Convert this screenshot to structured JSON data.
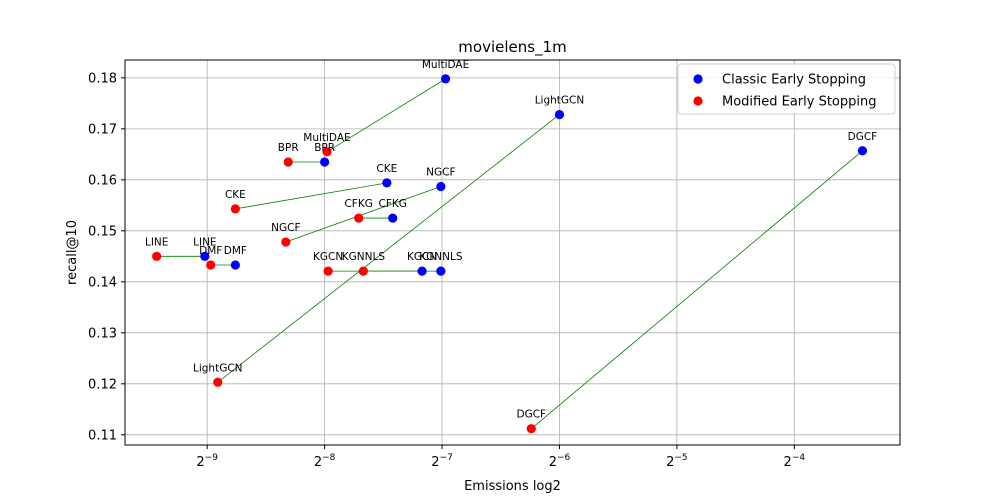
{
  "chart_data": {
    "type": "scatter",
    "title": "movielens_1m",
    "xlabel": "Emissions log2",
    "ylabel": "recall@10",
    "x_scale": "log2",
    "x_ticks": [
      {
        "exp": -9,
        "label": "2^-9"
      },
      {
        "exp": -8,
        "label": "2^-8"
      },
      {
        "exp": -7,
        "label": "2^-7"
      },
      {
        "exp": -6,
        "label": "2^-6"
      },
      {
        "exp": -5,
        "label": "2^-5"
      },
      {
        "exp": -4,
        "label": "2^-4"
      }
    ],
    "xlim_log2": [
      -9.7,
      -3.1
    ],
    "ylim": [
      0.108,
      0.1835
    ],
    "y_ticks": [
      0.11,
      0.12,
      0.13,
      0.14,
      0.15,
      0.16,
      0.17,
      0.18
    ],
    "grid": true,
    "legend_position": "top-right",
    "series": [
      {
        "name": "Classic Early Stopping",
        "color": "#0000ff",
        "points": [
          {
            "label": "MultiDAE",
            "x_log2": -6.97,
            "y": 0.1798
          },
          {
            "label": "LightGCN",
            "x_log2": -6.0,
            "y": 0.1728
          },
          {
            "label": "DGCF",
            "x_log2": -3.42,
            "y": 0.1657
          },
          {
            "label": "BPR",
            "x_log2": -8.0,
            "y": 0.1635
          },
          {
            "label": "CKE",
            "x_log2": -7.47,
            "y": 0.1594
          },
          {
            "label": "NGCF",
            "x_log2": -7.01,
            "y": 0.1587
          },
          {
            "label": "CFKG",
            "x_log2": -7.42,
            "y": 0.1525
          },
          {
            "label": "LINE",
            "x_log2": -9.02,
            "y": 0.145
          },
          {
            "label": "DMF",
            "x_log2": -8.76,
            "y": 0.1433
          },
          {
            "label": "KGCN",
            "x_log2": -7.17,
            "y": 0.1421
          },
          {
            "label": "KGNNLS",
            "x_log2": -7.01,
            "y": 0.1421
          }
        ]
      },
      {
        "name": "Modified Early Stopping",
        "color": "#ff0000",
        "points": [
          {
            "label": "MultiDAE",
            "x_log2": -7.98,
            "y": 0.1655
          },
          {
            "label": "BPR",
            "x_log2": -8.31,
            "y": 0.1635
          },
          {
            "label": "CKE",
            "x_log2": -8.76,
            "y": 0.1543
          },
          {
            "label": "CFKG",
            "x_log2": -7.71,
            "y": 0.1525
          },
          {
            "label": "NGCF",
            "x_log2": -8.33,
            "y": 0.1478
          },
          {
            "label": "LINE",
            "x_log2": -9.43,
            "y": 0.145
          },
          {
            "label": "DMF",
            "x_log2": -8.97,
            "y": 0.1433
          },
          {
            "label": "KGCN",
            "x_log2": -7.97,
            "y": 0.1421
          },
          {
            "label": "KGNNLS",
            "x_log2": -7.67,
            "y": 0.1421
          },
          {
            "label": "LightGCN",
            "x_log2": -8.91,
            "y": 0.1203
          },
          {
            "label": "DGCF",
            "x_log2": -6.24,
            "y": 0.1112
          }
        ]
      }
    ],
    "connection_color": "#008000"
  }
}
